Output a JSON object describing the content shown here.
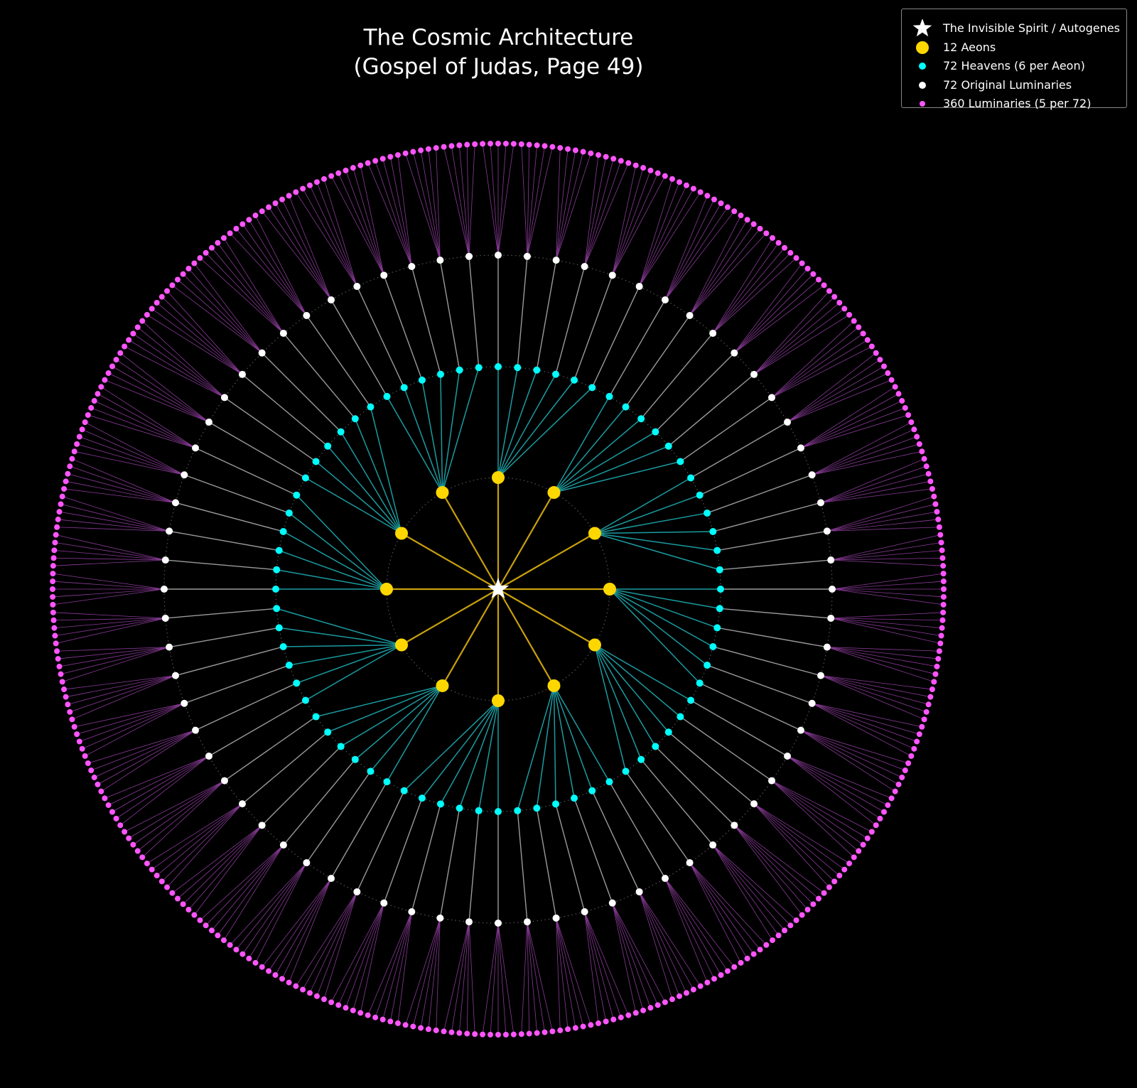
{
  "diagram": {
    "title": [
      "The Cosmic Architecture",
      "(Gospel of Judas, Page 49)"
    ],
    "center": {
      "label": "The Invisible Spirit / Autogenes",
      "color": "#ffffff",
      "icon": "star-icon"
    },
    "levels": [
      {
        "name": "12 Aeons",
        "count": 12,
        "color": "#ffd700",
        "edge_color": "#c9a00c"
      },
      {
        "name": "72 Heavens (6 per Aeon)",
        "count": 72,
        "per_parent": 6,
        "color": "#00ffff",
        "edge_color": "#1a9ba0"
      },
      {
        "name": "72 Original Luminaries",
        "count": 72,
        "per_parent": 1,
        "color": "#ffffff",
        "edge_color": "#9a9a9a"
      },
      {
        "name": "360 Luminaries (5 per 72)",
        "count": 360,
        "per_parent": 5,
        "color": "#ff55ff",
        "edge_color": "#8a3b98"
      }
    ]
  },
  "legend": {
    "items": [
      {
        "label": "The Invisible Spirit / Autogenes",
        "marker": "star-icon",
        "color": "#ffffff"
      },
      {
        "label": "12 Aeons",
        "marker": "circle",
        "color": "#ffd700"
      },
      {
        "label": "72 Heavens (6 per Aeon)",
        "marker": "circle",
        "color": "#00ffff"
      },
      {
        "label": "72 Original Luminaries",
        "marker": "circle",
        "color": "#ffffff"
      },
      {
        "label": "360 Luminaries (5 per 72)",
        "marker": "circle",
        "color": "#ff55ff"
      }
    ]
  }
}
